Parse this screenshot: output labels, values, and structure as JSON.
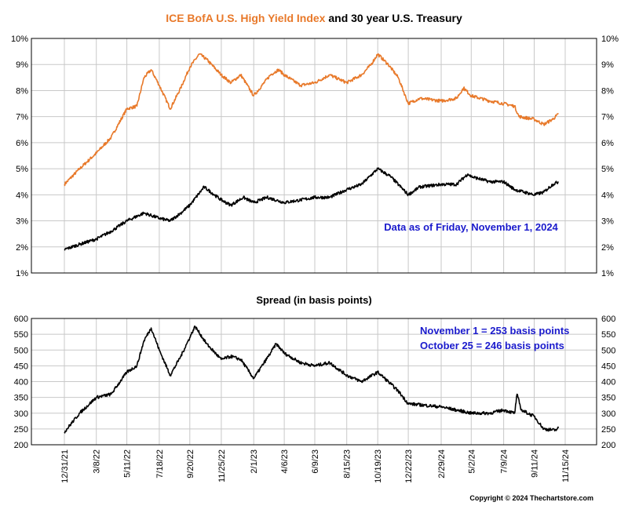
{
  "title": {
    "part1": "ICE BofA U.S. High Yield Index",
    "part2": " and 30 year U.S. Treasury"
  },
  "annotation_top": "Data as of Friday, November 1, 2024",
  "annotation_bottom": [
    "November 1 = 253 basis points",
    "October 25 = 246 basis points"
  ],
  "copyright": "Copyright © 2024 Thechartstore.com",
  "colors": {
    "high_yield": "#e8792a",
    "treasury": "#000000",
    "spread": "#000000",
    "title_accent": "#e8792a",
    "annotation": "#1a1acc"
  },
  "chart_data": [
    {
      "type": "line",
      "title": "ICE BofA U.S. High Yield Index and 30 year U.S. Treasury",
      "ylim": [
        1,
        10
      ],
      "y_ticks": [
        "1%",
        "2%",
        "3%",
        "4%",
        "5%",
        "6%",
        "7%",
        "8%",
        "9%",
        "10%"
      ],
      "x_dates": [
        "12/31/21",
        "3/8/22",
        "5/11/22",
        "7/18/22",
        "9/20/22",
        "11/25/22",
        "2/1/23",
        "4/6/23",
        "6/9/23",
        "8/15/23",
        "10/19/23",
        "12/22/23",
        "2/29/24",
        "5/2/24",
        "7/9/24",
        "9/11/24",
        "11/15/24"
      ],
      "grid": true,
      "series": [
        {
          "name": "ICE BofA U.S. High Yield Index",
          "points": [
            [
              "12/31/21",
              4.4
            ],
            [
              "2/1/22",
              5.0
            ],
            [
              "3/8/22",
              5.6
            ],
            [
              "4/8/22",
              6.2
            ],
            [
              "5/11/22",
              7.3
            ],
            [
              "6/1/22",
              7.4
            ],
            [
              "6/16/22",
              8.5
            ],
            [
              "7/1/22",
              8.8
            ],
            [
              "7/18/22",
              8.2
            ],
            [
              "8/10/22",
              7.3
            ],
            [
              "9/1/22",
              8.1
            ],
            [
              "9/20/22",
              8.9
            ],
            [
              "10/10/22",
              9.4
            ],
            [
              "10/25/22",
              9.2
            ],
            [
              "11/25/22",
              8.6
            ],
            [
              "12/15/22",
              8.3
            ],
            [
              "1/5/23",
              8.6
            ],
            [
              "2/1/23",
              7.8
            ],
            [
              "3/8/23",
              8.6
            ],
            [
              "3/25/23",
              8.8
            ],
            [
              "4/6/23",
              8.6
            ],
            [
              "5/10/23",
              8.2
            ],
            [
              "6/9/23",
              8.3
            ],
            [
              "7/10/23",
              8.6
            ],
            [
              "8/15/23",
              8.3
            ],
            [
              "9/15/23",
              8.6
            ],
            [
              "10/5/23",
              9.0
            ],
            [
              "10/19/23",
              9.4
            ],
            [
              "11/10/23",
              9.0
            ],
            [
              "12/1/23",
              8.5
            ],
            [
              "12/22/23",
              7.5
            ],
            [
              "1/15/24",
              7.7
            ],
            [
              "2/29/24",
              7.6
            ],
            [
              "4/1/24",
              7.7
            ],
            [
              "4/16/24",
              8.1
            ],
            [
              "5/2/24",
              7.8
            ],
            [
              "6/10/24",
              7.6
            ],
            [
              "7/9/24",
              7.5
            ],
            [
              "8/1/24",
              7.4
            ],
            [
              "8/10/24",
              7.0
            ],
            [
              "9/11/24",
              6.9
            ],
            [
              "10/1/24",
              6.7
            ],
            [
              "10/20/24",
              6.9
            ],
            [
              "11/1/24",
              7.1
            ]
          ]
        },
        {
          "name": "30 year U.S. Treasury",
          "points": [
            [
              "12/31/21",
              1.9
            ],
            [
              "2/1/22",
              2.1
            ],
            [
              "3/8/22",
              2.3
            ],
            [
              "4/8/22",
              2.6
            ],
            [
              "5/11/22",
              3.0
            ],
            [
              "6/16/22",
              3.3
            ],
            [
              "7/18/22",
              3.1
            ],
            [
              "8/10/22",
              3.0
            ],
            [
              "9/1/22",
              3.3
            ],
            [
              "9/20/22",
              3.6
            ],
            [
              "10/20/22",
              4.3
            ],
            [
              "11/25/22",
              3.8
            ],
            [
              "12/15/22",
              3.6
            ],
            [
              "1/10/23",
              3.9
            ],
            [
              "2/1/23",
              3.7
            ],
            [
              "3/1/23",
              3.9
            ],
            [
              "4/6/23",
              3.7
            ],
            [
              "5/10/23",
              3.8
            ],
            [
              "6/9/23",
              3.9
            ],
            [
              "7/10/23",
              3.9
            ],
            [
              "8/15/23",
              4.2
            ],
            [
              "9/15/23",
              4.4
            ],
            [
              "10/19/23",
              5.0
            ],
            [
              "11/15/23",
              4.7
            ],
            [
              "12/22/23",
              4.0
            ],
            [
              "1/15/24",
              4.3
            ],
            [
              "2/29/24",
              4.4
            ],
            [
              "4/1/24",
              4.4
            ],
            [
              "4/25/24",
              4.8
            ],
            [
              "5/2/24",
              4.7
            ],
            [
              "6/10/24",
              4.5
            ],
            [
              "7/9/24",
              4.5
            ],
            [
              "8/1/24",
              4.2
            ],
            [
              "9/11/24",
              4.0
            ],
            [
              "10/1/24",
              4.1
            ],
            [
              "10/20/24",
              4.4
            ],
            [
              "11/1/24",
              4.5
            ]
          ]
        }
      ]
    },
    {
      "type": "line",
      "title": "Spread (in basis points)",
      "ylim": [
        200,
        600
      ],
      "y_ticks": [
        "200",
        "250",
        "300",
        "350",
        "400",
        "450",
        "500",
        "550",
        "600"
      ],
      "grid": true,
      "series": [
        {
          "name": "Spread",
          "points": [
            [
              "12/31/21",
              240
            ],
            [
              "2/1/22",
              300
            ],
            [
              "3/8/22",
              350
            ],
            [
              "4/8/22",
              360
            ],
            [
              "5/11/22",
              430
            ],
            [
              "6/1/22",
              450
            ],
            [
              "6/16/22",
              530
            ],
            [
              "7/1/22",
              570
            ],
            [
              "7/18/22",
              500
            ],
            [
              "8/10/22",
              420
            ],
            [
              "9/1/22",
              480
            ],
            [
              "9/20/22",
              540
            ],
            [
              "10/1/22",
              575
            ],
            [
              "10/25/22",
              520
            ],
            [
              "11/25/22",
              470
            ],
            [
              "12/15/22",
              480
            ],
            [
              "1/5/23",
              470
            ],
            [
              "2/1/23",
              410
            ],
            [
              "3/8/23",
              490
            ],
            [
              "3/20/23",
              520
            ],
            [
              "4/6/23",
              490
            ],
            [
              "5/10/23",
              460
            ],
            [
              "6/9/23",
              450
            ],
            [
              "7/10/23",
              460
            ],
            [
              "8/15/23",
              420
            ],
            [
              "9/15/23",
              400
            ],
            [
              "10/19/23",
              430
            ],
            [
              "11/10/23",
              400
            ],
            [
              "12/1/23",
              370
            ],
            [
              "12/22/23",
              330
            ],
            [
              "2/29/24",
              320
            ],
            [
              "4/1/24",
              310
            ],
            [
              "5/2/24",
              300
            ],
            [
              "6/10/24",
              300
            ],
            [
              "7/9/24",
              310
            ],
            [
              "8/1/24",
              300
            ],
            [
              "8/6/24",
              360
            ],
            [
              "8/15/24",
              310
            ],
            [
              "9/11/24",
              290
            ],
            [
              "10/1/24",
              250
            ],
            [
              "10/25/24",
              246
            ],
            [
              "11/1/24",
              253
            ]
          ]
        }
      ]
    }
  ]
}
